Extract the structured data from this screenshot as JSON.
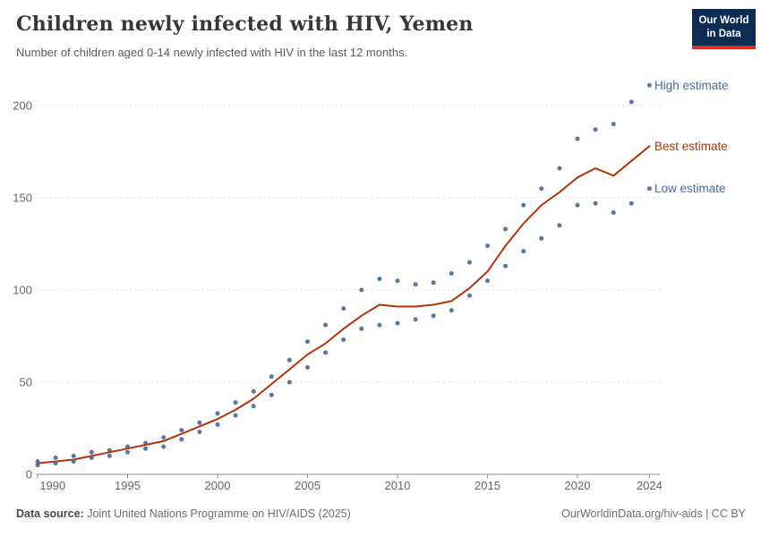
{
  "header": {
    "title": "Children newly infected with HIV, Yemen",
    "subtitle": "Number of children aged 0-14 newly infected with HIV in the last 12 months.",
    "logo": {
      "line1": "Our World",
      "line2": "in Data"
    }
  },
  "chart_data": {
    "type": "line",
    "title": "Children newly infected with HIV, Yemen",
    "subtitle": "Number of children aged 0-14 newly infected with HIV in the last 12 months.",
    "xlabel": "",
    "ylabel": "",
    "x": [
      1990,
      1991,
      1992,
      1993,
      1994,
      1995,
      1996,
      1997,
      1998,
      1999,
      2000,
      2001,
      2002,
      2003,
      2004,
      2005,
      2006,
      2007,
      2008,
      2009,
      2010,
      2011,
      2012,
      2013,
      2014,
      2015,
      2016,
      2017,
      2018,
      2019,
      2020,
      2021,
      2022,
      2023,
      2024
    ],
    "series": [
      {
        "name": "High estimate",
        "style": "scatter",
        "color": "#4C6A9C",
        "values": [
          7,
          9,
          10,
          12,
          13,
          15,
          17,
          20,
          24,
          28,
          33,
          39,
          45,
          53,
          62,
          72,
          81,
          90,
          100,
          106,
          105,
          103,
          104,
          109,
          115,
          124,
          133,
          146,
          155,
          166,
          182,
          187,
          190,
          202,
          211
        ]
      },
      {
        "name": "Best estimate",
        "style": "line",
        "color": "#B13507",
        "values": [
          6,
          7,
          8,
          10,
          12,
          14,
          16,
          18,
          22,
          26,
          30,
          35,
          41,
          49,
          57,
          65,
          71,
          79,
          86,
          92,
          91,
          91,
          92,
          94,
          101,
          110,
          124,
          136,
          146,
          153,
          161,
          166,
          162,
          170,
          178
        ]
      },
      {
        "name": "Low estimate",
        "style": "scatter",
        "color": "#4C6A9C",
        "values": [
          5,
          6,
          7,
          9,
          10,
          12,
          14,
          15,
          19,
          23,
          27,
          32,
          37,
          43,
          50,
          58,
          66,
          73,
          79,
          81,
          82,
          84,
          86,
          89,
          97,
          105,
          113,
          121,
          128,
          135,
          146,
          147,
          142,
          147,
          155
        ]
      }
    ],
    "ylim": [
      0,
      200
    ],
    "yticks": [
      0,
      50,
      100,
      150,
      200
    ],
    "xticks": [
      1990,
      1995,
      2000,
      2005,
      2010,
      2015,
      2020,
      2024
    ],
    "grid": true,
    "legend_position": "right-end-labels"
  },
  "footer": {
    "datasource_label": "Data source:",
    "datasource_text": " Joint United Nations Programme on HIV/AIDS (2025)",
    "link": "OurWorldinData.org/hiv-aids | CC BY"
  },
  "colors": {
    "scatter_blue": "#4C6A9C",
    "line_red": "#B13507",
    "grid": "#dcdcdc",
    "axis": "#8f8f8f",
    "tick_text": "#666666",
    "logo_navy": "#0c2d51",
    "logo_red": "#dc2d1e"
  }
}
